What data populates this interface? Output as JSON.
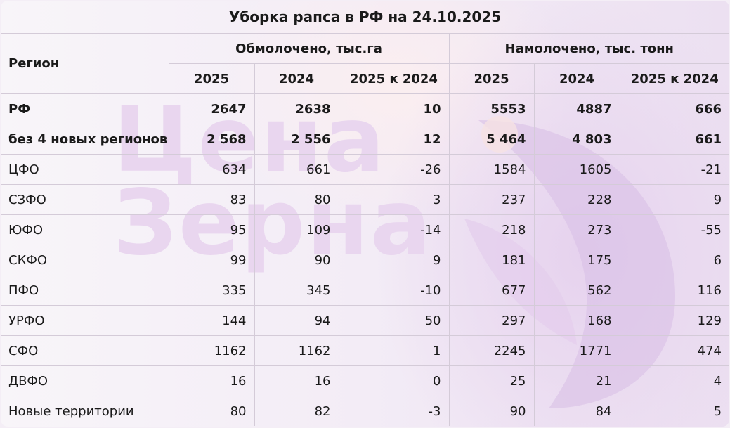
{
  "title": "Уборка рапса в РФ на 24.10.2025",
  "headers": {
    "region": "Регион",
    "group1": "Обмолочено, тыс.га",
    "group2": "Намолочено, тыс. тонн",
    "sub": [
      "2025",
      "2024",
      "2025 к 2024",
      "2025",
      "2024",
      "2025 к 2024"
    ]
  },
  "watermark": "Цена Зерна",
  "rows": [
    {
      "region": "РФ",
      "v": [
        "2647",
        "2638",
        "10",
        "5553",
        "4887",
        "666"
      ],
      "bold": true
    },
    {
      "region": "без 4 новых регионов",
      "v": [
        "2 568",
        "2 556",
        "12",
        "5 464",
        "4 803",
        "661"
      ],
      "bold": true
    },
    {
      "region": "ЦФО",
      "v": [
        "634",
        "661",
        "-26",
        "1584",
        "1605",
        "-21"
      ]
    },
    {
      "region": "СЗФО",
      "v": [
        "83",
        "80",
        "3",
        "237",
        "228",
        "9"
      ]
    },
    {
      "region": "ЮФО",
      "v": [
        "95",
        "109",
        "-14",
        "218",
        "273",
        "-55"
      ]
    },
    {
      "region": "СКФО",
      "v": [
        "99",
        "90",
        "9",
        "181",
        "175",
        "6"
      ]
    },
    {
      "region": "ПФО",
      "v": [
        "335",
        "345",
        "-10",
        "677",
        "562",
        "116"
      ]
    },
    {
      "region": "УРФО",
      "v": [
        "144",
        "94",
        "50",
        "297",
        "168",
        "129"
      ]
    },
    {
      "region": "СФО",
      "v": [
        "1162",
        "1162",
        "1",
        "2245",
        "1771",
        "474"
      ]
    },
    {
      "region": "ДВФО",
      "v": [
        "16",
        "16",
        "0",
        "25",
        "21",
        "4"
      ]
    },
    {
      "region": "Новые территории",
      "v": [
        "80",
        "82",
        "-3",
        "90",
        "84",
        "5"
      ]
    }
  ]
}
